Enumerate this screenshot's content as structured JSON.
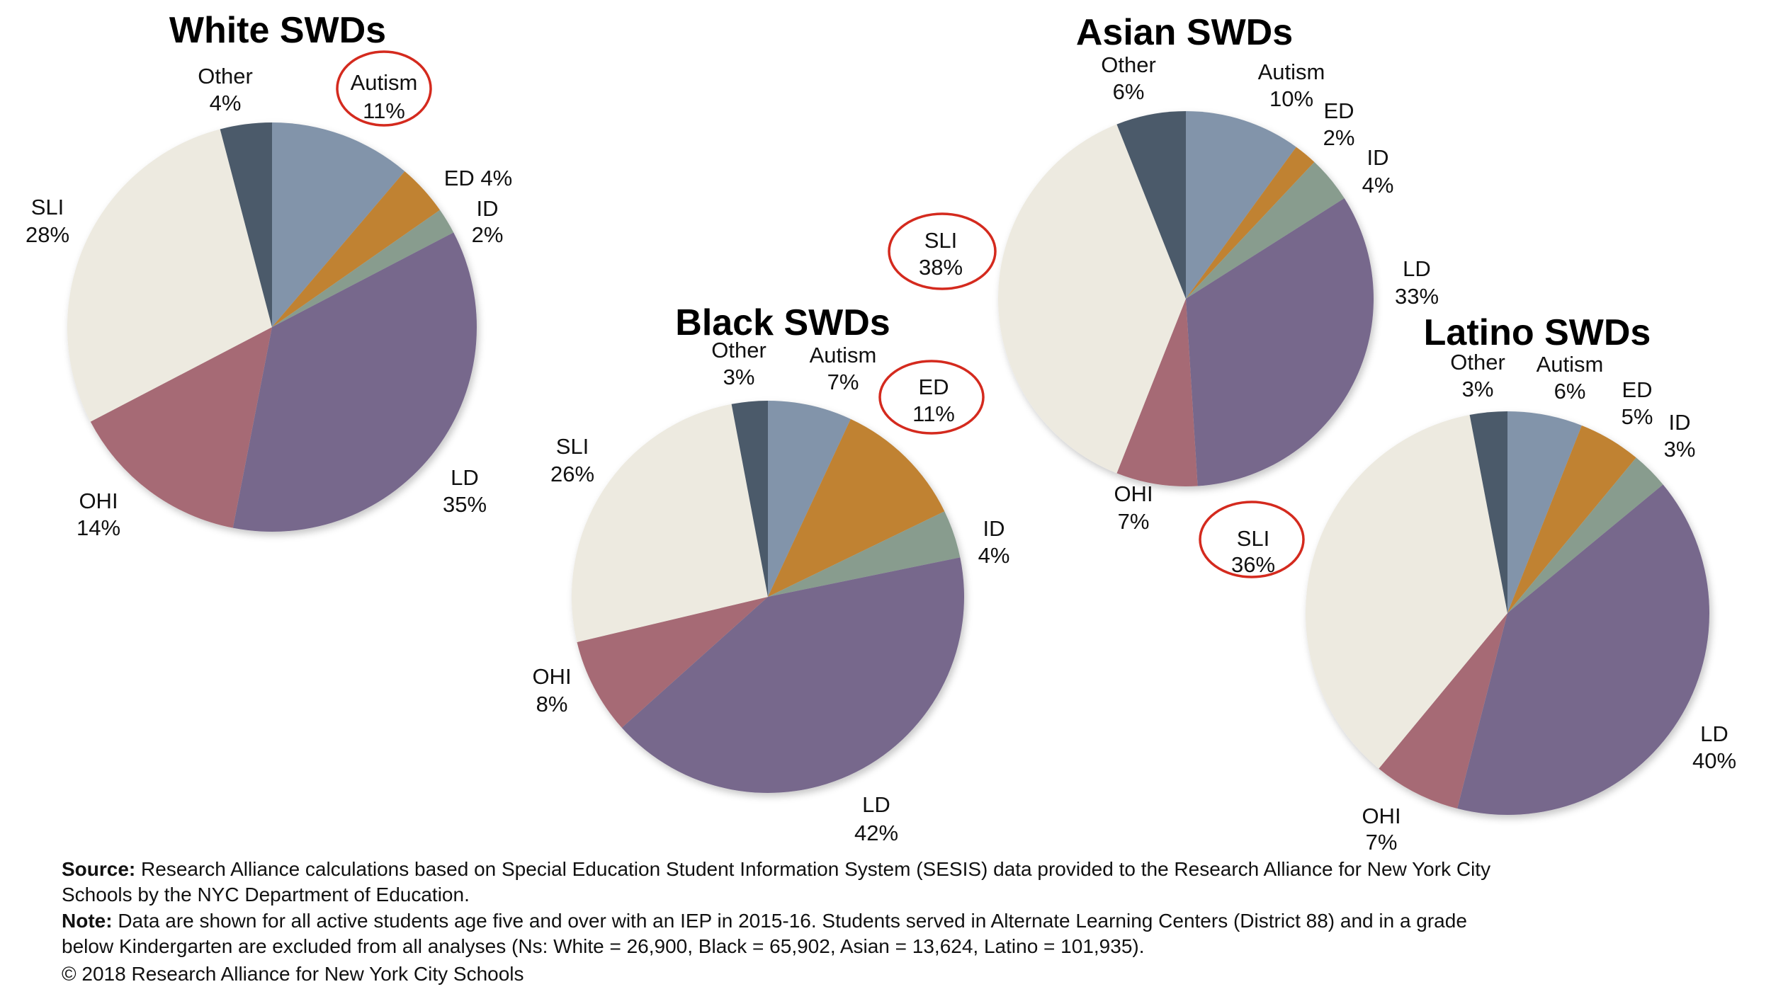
{
  "chart_data": [
    {
      "type": "pie",
      "title": "White SWDs",
      "start": "12 o'clock, clockwise",
      "categories": [
        "Autism",
        "ED",
        "ID",
        "LD",
        "OHI",
        "SLI",
        "Other"
      ],
      "values": [
        11,
        4,
        2,
        35,
        14,
        28,
        4
      ],
      "labels": [
        "Autism 11%",
        "ED 4%",
        "ID 2%",
        "LD 35%",
        "OHI 14%",
        "SLI 28%",
        "Other 4%"
      ],
      "highlighted": [
        "Autism"
      ]
    },
    {
      "type": "pie",
      "title": "Black SWDs",
      "start": "12 o'clock, clockwise",
      "categories": [
        "Autism",
        "ED",
        "ID",
        "LD",
        "OHI",
        "SLI",
        "Other"
      ],
      "values": [
        7,
        11,
        4,
        42,
        8,
        26,
        3
      ],
      "labels": [
        "Autism 7%",
        "ED 11%",
        "ID 4%",
        "LD 42%",
        "OHI 8%",
        "SLI 26%",
        "Other 3%"
      ],
      "highlighted": [
        "ED"
      ]
    },
    {
      "type": "pie",
      "title": "Asian SWDs",
      "start": "12 o'clock, clockwise",
      "categories": [
        "Autism",
        "ED",
        "ID",
        "LD",
        "OHI",
        "SLI",
        "Other"
      ],
      "values": [
        10,
        2,
        4,
        33,
        7,
        38,
        6
      ],
      "labels": [
        "Autism 10%",
        "ED 2%",
        "ID 4%",
        "LD 33%",
        "OHI 7%",
        "SLI 38%",
        "Other 6%"
      ],
      "highlighted": [
        "SLI"
      ]
    },
    {
      "type": "pie",
      "title": "Latino SWDs",
      "start": "12 o'clock, clockwise",
      "categories": [
        "Autism",
        "ED",
        "ID",
        "LD",
        "OHI",
        "SLI",
        "Other"
      ],
      "values": [
        6,
        5,
        3,
        40,
        7,
        36,
        3
      ],
      "labels": [
        "Autism 6%",
        "ED 5%",
        "ID 3%",
        "LD 40%",
        "OHI 7%",
        "SLI 36%",
        "Other 3%"
      ],
      "highlighted": [
        "SLI"
      ]
    }
  ],
  "colors": {
    "Autism": "#8294aa",
    "ED": "#c08232",
    "ID": "#889c8e",
    "LD": "#77688c",
    "OHI": "#a66b74",
    "SLI": "#edeae0",
    "Other": "#4c5a6b",
    "highlight": "#d42a1e"
  },
  "footnotes": {
    "source_label": "Source:",
    "source_line1": "Research Alliance calculations based on Special Education Student Information System (SESIS) data provided to the Research Alliance for New York City",
    "source_line2": "Schools by the NYC Department of Education.",
    "note_label": "Note:",
    "note_line1": "Data are shown for all active students age five and over with an IEP in 2015-16. Students served in Alternate Learning Centers (District 88) and in a grade",
    "note_line2": "below Kindergarten are excluded from all analyses (Ns: White = 26,900, Black = 65,902, Asian = 13,624, Latino = 101,935).",
    "copyright": "© 2018 Research Alliance for New York City Schools"
  }
}
